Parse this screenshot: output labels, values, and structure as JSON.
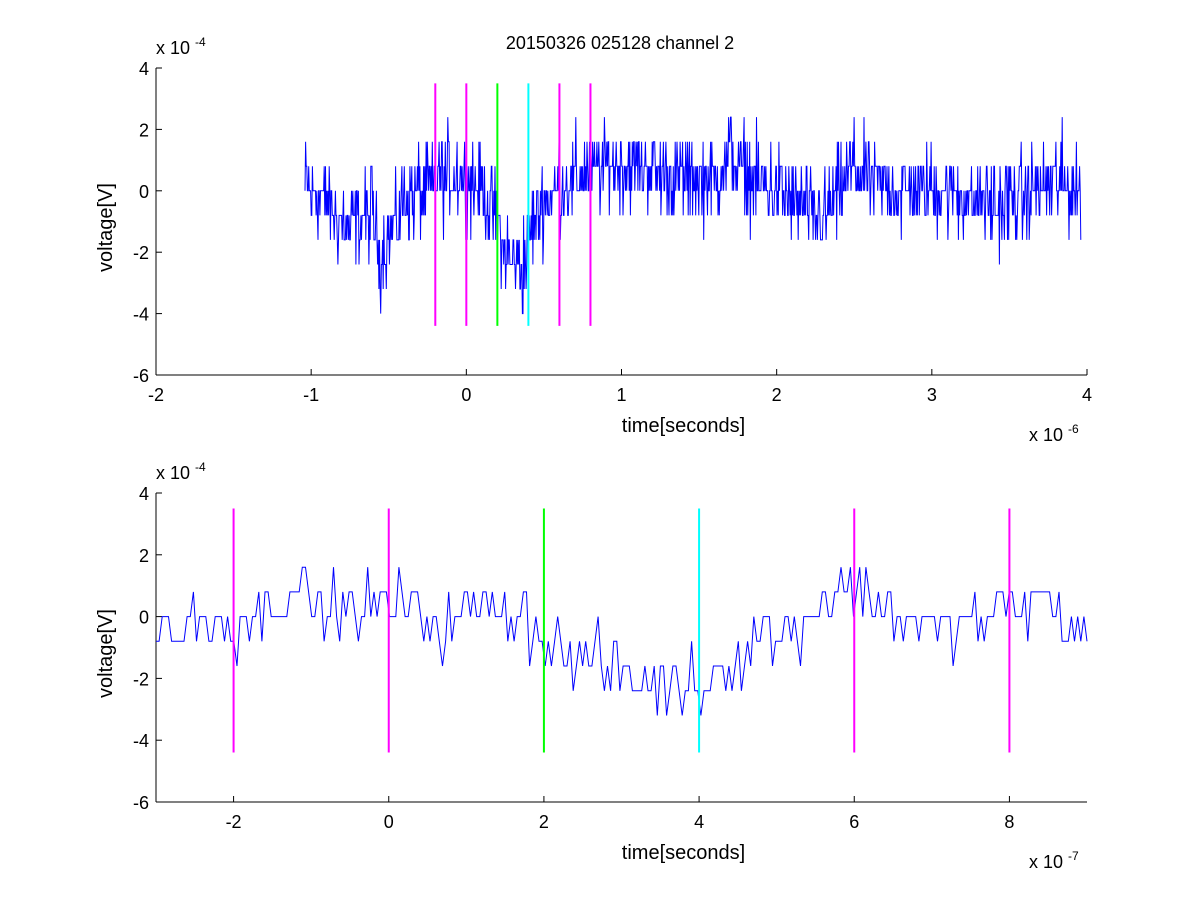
{
  "figure_title": "20150326 025128 channel 2",
  "chart_data": [
    {
      "type": "line",
      "title": "20150326 025128 channel 2",
      "xlabel": "time[seconds]",
      "ylabel": "voltage[V]",
      "x_exponent_label": "x 10",
      "x_exponent": "-6",
      "y_exponent_label": "x 10",
      "y_exponent": "-4",
      "xlim": [
        -2,
        4
      ],
      "ylim": [
        -6,
        4
      ],
      "xticks": [
        -2,
        -1,
        0,
        1,
        2,
        3,
        4
      ],
      "yticks": [
        -6,
        -4,
        -2,
        0,
        2,
        4
      ],
      "grid": false,
      "series": [
        {
          "color": "#0000ff",
          "x_start": -1.04,
          "x_end": 3.96,
          "x": [
            -1.04,
            -0.9,
            -0.76,
            -0.6,
            -0.56,
            -0.4,
            -0.2,
            -0.1,
            0.0,
            0.1,
            0.16,
            0.2,
            0.24,
            0.28,
            0.32,
            0.36,
            0.4,
            0.44,
            0.5,
            0.6,
            0.7,
            0.8,
            0.9,
            1.0,
            1.2,
            1.4,
            1.6,
            1.7,
            1.8,
            2.0,
            2.2,
            2.3,
            2.4,
            2.48,
            2.6,
            2.8,
            3.0,
            3.2,
            3.4,
            3.6,
            3.8,
            3.96
          ],
          "y": [
            0.2,
            -0.4,
            -1.2,
            -0.6,
            -2.2,
            -0.3,
            0.2,
            0.6,
            0.4,
            0.0,
            -0.5,
            -1.1,
            -1.9,
            -2.3,
            -2.5,
            -2.4,
            -1.8,
            -1.0,
            -0.4,
            0.2,
            0.4,
            0.6,
            0.8,
            0.9,
            0.7,
            0.4,
            0.3,
            1.2,
            0.5,
            0.0,
            -0.6,
            -0.9,
            -0.2,
            0.8,
            0.4,
            -0.1,
            0.1,
            -0.2,
            -0.5,
            -0.1,
            0.3,
            0.0
          ],
          "noise_amplitude": 1.4,
          "points": 1250
        }
      ],
      "vlines": [
        {
          "x": -0.2,
          "color": "#ff00ff",
          "y_range": [
            -4.4,
            3.5
          ]
        },
        {
          "x": 0.0,
          "color": "#ff00ff",
          "y_range": [
            -4.4,
            3.5
          ]
        },
        {
          "x": 0.2,
          "color": "#00ff00",
          "y_range": [
            -4.4,
            3.5
          ]
        },
        {
          "x": 0.4,
          "color": "#00ffff",
          "y_range": [
            -4.4,
            3.5
          ]
        },
        {
          "x": 0.6,
          "color": "#ff00ff",
          "y_range": [
            -4.4,
            3.5
          ]
        },
        {
          "x": 0.8,
          "color": "#ff00ff",
          "y_range": [
            -4.4,
            3.5
          ]
        }
      ]
    },
    {
      "type": "line",
      "title": "",
      "xlabel": "time[seconds]",
      "ylabel": "voltage[V]",
      "x_exponent_label": "x 10",
      "x_exponent": "-7",
      "y_exponent_label": "x 10",
      "y_exponent": "-4",
      "xlim": [
        -3,
        9
      ],
      "ylim": [
        -6,
        4
      ],
      "xticks": [
        -2,
        0,
        2,
        4,
        6,
        8
      ],
      "yticks": [
        -6,
        -4,
        -2,
        0,
        2,
        4
      ],
      "grid": false,
      "series": [
        {
          "color": "#0000ff",
          "x_start": -3,
          "x_end": 9,
          "x": [
            -3,
            -2.5,
            -2,
            -1.5,
            -1.2,
            -1.0,
            -0.5,
            0,
            0.5,
            1.0,
            1.5,
            1.8,
            2.0,
            2.4,
            2.8,
            3.0,
            3.2,
            3.6,
            4.0,
            4.4,
            4.8,
            5.2,
            5.6,
            5.8,
            6.0,
            6.4,
            6.8,
            7.2,
            7.6,
            8.0,
            8.4,
            8.8,
            9
          ],
          "y": [
            -0.5,
            -0.2,
            -0.3,
            0.3,
            1.2,
            0.4,
            0.2,
            0.6,
            -0.3,
            0.1,
            0.4,
            -0.2,
            -0.9,
            -1.3,
            -1.6,
            -1.9,
            -2.2,
            -2.3,
            -2.1,
            -1.4,
            -0.8,
            -0.3,
            0.6,
            1.1,
            0.8,
            0.2,
            -0.2,
            -0.5,
            -0.2,
            0.3,
            0.6,
            -0.5,
            -0.5
          ],
          "noise_amplitude": 1.0,
          "points": 300
        }
      ],
      "vlines": [
        {
          "x": -2,
          "color": "#ff00ff",
          "y_range": [
            -4.4,
            3.5
          ]
        },
        {
          "x": 0,
          "color": "#ff00ff",
          "y_range": [
            -4.4,
            3.5
          ]
        },
        {
          "x": 2,
          "color": "#00ff00",
          "y_range": [
            -4.4,
            3.5
          ]
        },
        {
          "x": 4,
          "color": "#00ffff",
          "y_range": [
            -4.4,
            3.5
          ]
        },
        {
          "x": 6,
          "color": "#ff00ff",
          "y_range": [
            -4.4,
            3.5
          ]
        },
        {
          "x": 8,
          "color": "#ff00ff",
          "y_range": [
            -4.4,
            3.5
          ]
        }
      ]
    }
  ]
}
